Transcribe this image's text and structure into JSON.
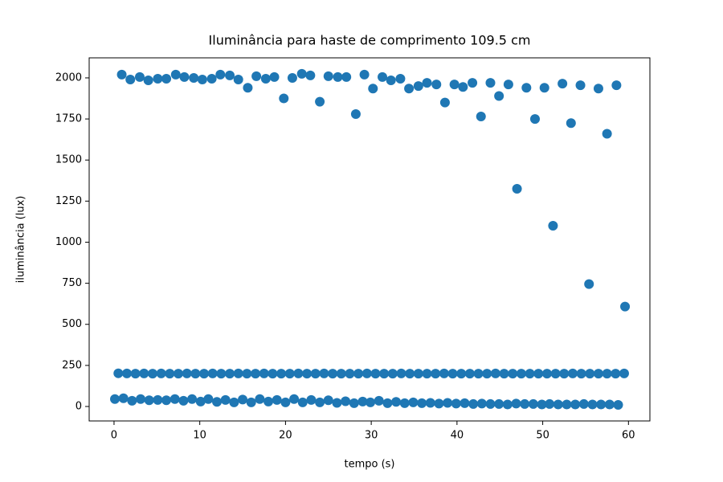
{
  "chart_data": {
    "type": "scatter",
    "title": "Iluminância para haste de comprimento 109.5 cm",
    "x_label": "tempo (s)",
    "y_label": "iluminância (lux)",
    "xlim": [
      -2.9,
      62.5
    ],
    "ylim": [
      -88,
      2122
    ],
    "xticks": [
      0,
      10,
      20,
      30,
      40,
      50,
      60
    ],
    "yticks": [
      0,
      250,
      500,
      750,
      1000,
      1250,
      1500,
      1750,
      2000
    ],
    "series": [
      {
        "color": "#1f77b4",
        "x": [
          0.9,
          1.9,
          3.0,
          4.0,
          5.1,
          6.1,
          7.2,
          8.2,
          9.3,
          10.3,
          11.4,
          12.4,
          13.5,
          14.5,
          15.6,
          16.6,
          17.7,
          18.7,
          19.8,
          20.8,
          21.9,
          22.9,
          24.0,
          25.0,
          26.1,
          27.1,
          28.2,
          29.2,
          30.2,
          31.3,
          32.3,
          33.4,
          34.4,
          35.5,
          36.5,
          37.6,
          38.6,
          39.7,
          40.7,
          41.8,
          42.8,
          43.9,
          44.9,
          46.0,
          47.0,
          48.1,
          49.1,
          50.2,
          51.2,
          52.3,
          53.3,
          54.4,
          55.4,
          56.5,
          57.5,
          58.6,
          59.6
        ],
        "values": [
          2020,
          1990,
          2005,
          1985,
          1995,
          1995,
          2020,
          2005,
          2000,
          1990,
          1995,
          2020,
          2015,
          1990,
          1940,
          2010,
          1995,
          2005,
          1875,
          2000,
          2025,
          2015,
          1855,
          2010,
          2005,
          2005,
          1780,
          2020,
          1935,
          2005,
          1985,
          1995,
          1935,
          1950,
          1970,
          1960,
          1850,
          1960,
          1945,
          1970,
          1765,
          1970,
          1890,
          1960,
          1325,
          1940,
          1750,
          1940,
          1100,
          1965,
          1725,
          1955,
          745,
          1935,
          1660,
          1955,
          608
        ]
      },
      {
        "color": "#1f77b4",
        "x": [
          0.5,
          1.5,
          2.5,
          3.5,
          4.5,
          5.5,
          6.5,
          7.5,
          8.5,
          9.5,
          10.5,
          11.5,
          12.5,
          13.5,
          14.5,
          15.5,
          16.5,
          17.5,
          18.5,
          19.5,
          20.5,
          21.5,
          22.5,
          23.5,
          24.5,
          25.5,
          26.5,
          27.5,
          28.5,
          29.5,
          30.5,
          31.5,
          32.5,
          33.5,
          34.5,
          35.5,
          36.5,
          37.5,
          38.5,
          39.5,
          40.5,
          41.5,
          42.5,
          43.5,
          44.5,
          45.5,
          46.5,
          47.5,
          48.5,
          49.5,
          50.5,
          51.5,
          52.5,
          53.5,
          54.5,
          55.5,
          56.5,
          57.5,
          58.5,
          59.5
        ],
        "values": [
          202,
          201,
          200,
          201,
          200,
          201,
          200,
          200,
          201,
          200,
          200,
          201,
          200,
          200,
          201,
          200,
          200,
          201,
          200,
          200,
          200,
          201,
          200,
          200,
          201,
          200,
          200,
          200,
          200,
          201,
          200,
          200,
          200,
          201,
          200,
          200,
          200,
          200,
          201,
          200,
          200,
          200,
          200,
          200,
          201,
          200,
          200,
          200,
          200,
          200,
          200,
          200,
          200,
          201,
          200,
          200,
          200,
          200,
          200,
          201
        ]
      },
      {
        "color": "#1f77b4",
        "x": [
          0.1,
          1.1,
          2.1,
          3.1,
          4.1,
          5.1,
          6.1,
          7.1,
          8.1,
          9.1,
          10.1,
          11,
          12,
          13,
          14,
          15,
          16,
          17,
          18,
          19,
          20,
          21,
          22,
          23,
          24,
          25,
          26,
          27,
          28,
          29,
          29.9,
          30.9,
          31.9,
          32.9,
          33.9,
          34.9,
          35.9,
          36.9,
          37.9,
          38.9,
          39.9,
          40.9,
          41.9,
          42.9,
          43.9,
          44.9,
          45.9,
          46.9,
          47.9,
          48.9,
          49.9,
          50.8,
          51.8,
          52.8,
          53.8,
          54.8,
          55.8,
          56.8,
          57.8,
          58.8
        ],
        "values": [
          45,
          50,
          35,
          45,
          38,
          40,
          38,
          45,
          35,
          45,
          30,
          45,
          28,
          40,
          25,
          42,
          25,
          45,
          30,
          40,
          25,
          45,
          25,
          40,
          25,
          38,
          22,
          32,
          20,
          30,
          25,
          35,
          20,
          28,
          20,
          25,
          20,
          22,
          18,
          22,
          18,
          20,
          15,
          18,
          15,
          15,
          12,
          18,
          15,
          15,
          12,
          15,
          12,
          12,
          12,
          15,
          12,
          12,
          12,
          10
        ]
      }
    ]
  }
}
